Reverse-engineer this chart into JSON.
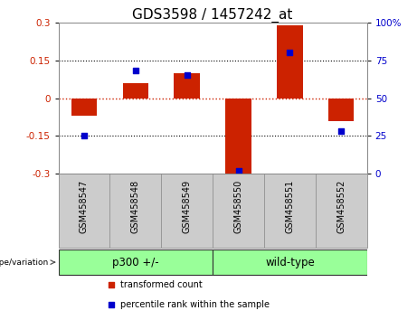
{
  "title": "GDS3598 / 1457242_at",
  "categories": [
    "GSM458547",
    "GSM458548",
    "GSM458549",
    "GSM458550",
    "GSM458551",
    "GSM458552"
  ],
  "red_bars": [
    -0.07,
    0.06,
    0.1,
    -0.31,
    0.29,
    -0.09
  ],
  "blue_dots_pct": [
    25,
    68,
    65,
    2,
    80,
    28
  ],
  "ylim": [
    -0.3,
    0.3
  ],
  "yticks": [
    -0.3,
    -0.15,
    0,
    0.15,
    0.3
  ],
  "ytick_labels": [
    "-0.3",
    "-0.15",
    "0",
    "0.15",
    "0.3"
  ],
  "right_yticks": [
    0,
    25,
    50,
    75,
    100
  ],
  "right_ytick_labels": [
    "0",
    "25",
    "50",
    "75",
    "100%"
  ],
  "red_color": "#CC2200",
  "blue_color": "#0000CC",
  "zero_line_color": "#CC2200",
  "dotted_line_color": "#000000",
  "bar_width": 0.5,
  "group1_label": "p300 +/-",
  "group2_label": "wild-type",
  "group1_indices": [
    0,
    1,
    2
  ],
  "group2_indices": [
    3,
    4,
    5
  ],
  "group_bar_color": "#99FF99",
  "genotype_label": "genotype/variation",
  "legend_red": "transformed count",
  "legend_blue": "percentile rank within the sample",
  "title_fontsize": 11,
  "tick_fontsize": 7.5,
  "label_fontsize": 7,
  "group_fontsize": 8.5,
  "cell_color": "#CCCCCC",
  "cell_edge_color": "#999999",
  "spine_color": "#888888"
}
